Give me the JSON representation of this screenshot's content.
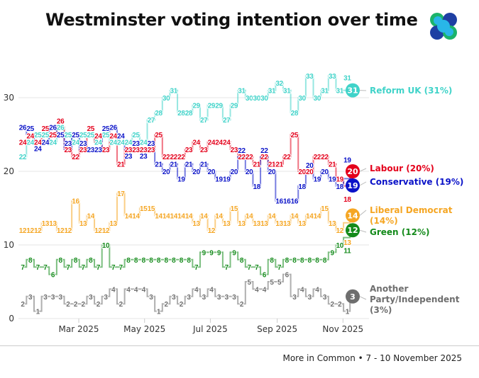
{
  "title": "Westminster voting intention over time",
  "logo": {
    "icon": "more-in-common-logo",
    "colors": [
      "#1bb36b",
      "#1e3fa3",
      "#29b6e8"
    ]
  },
  "source": "More in Common • 7 - 10 November 2025",
  "chart_data": {
    "type": "line",
    "title": "Westminster voting intention over time",
    "xlabel": "",
    "ylabel": "",
    "ylim": [
      0,
      35
    ],
    "yticks": [
      0,
      10,
      20,
      30
    ],
    "xticks": [
      {
        "date": "2025-03-01",
        "label": "Mar 2025"
      },
      {
        "date": "2025-05-01",
        "label": "May 2025"
      },
      {
        "date": "2025-07-01",
        "label": "Jul 2025"
      },
      {
        "date": "2025-09-01",
        "label": "Sep 2025"
      },
      {
        "date": "2025-11-01",
        "label": "Nov 2025"
      }
    ],
    "grid": "horizontal",
    "x": [
      "2025-01-08",
      "2025-01-15",
      "2025-01-22",
      "2025-01-29",
      "2025-02-05",
      "2025-02-12",
      "2025-02-19",
      "2025-02-26",
      "2025-03-05",
      "2025-03-12",
      "2025-03-19",
      "2025-03-26",
      "2025-04-02",
      "2025-04-09",
      "2025-04-16",
      "2025-04-23",
      "2025-04-30",
      "2025-05-07",
      "2025-05-14",
      "2025-05-21",
      "2025-05-28",
      "2025-06-04",
      "2025-06-11",
      "2025-06-18",
      "2025-06-25",
      "2025-07-02",
      "2025-07-09",
      "2025-07-16",
      "2025-07-23",
      "2025-07-30",
      "2025-08-06",
      "2025-08-13",
      "2025-08-20",
      "2025-08-27",
      "2025-09-03",
      "2025-09-10",
      "2025-09-17",
      "2025-09-24",
      "2025-10-01",
      "2025-10-08",
      "2025-10-15",
      "2025-10-22",
      "2025-10-29",
      "2025-11-05",
      "2025-11-10"
    ],
    "series": [
      {
        "name": "Reform UK",
        "end_label": "Reform UK (31%)",
        "color": "#40d3c9",
        "values": [
          22,
          24,
          25,
          25,
          24,
          26,
          25,
          24,
          25,
          25,
          24,
          25,
          24,
          24,
          24,
          25,
          24,
          27,
          28,
          30,
          31,
          28,
          28,
          29,
          27,
          29,
          29,
          27,
          29,
          31,
          30,
          30,
          30,
          31,
          32,
          31,
          28,
          30,
          33,
          30,
          31,
          33,
          31,
          31,
          31
        ]
      },
      {
        "name": "Labour",
        "end_label": "Labour (20%)",
        "color": "#e4001b",
        "values": [
          24,
          24,
          24,
          25,
          25,
          26,
          23,
          22,
          23,
          25,
          24,
          23,
          24,
          21,
          23,
          23,
          23,
          23,
          25,
          22,
          22,
          22,
          23,
          24,
          23,
          24,
          24,
          24,
          23,
          22,
          22,
          21,
          22,
          21,
          21,
          22,
          25,
          20,
          20,
          22,
          22,
          21,
          19,
          18,
          20
        ]
      },
      {
        "name": "Conservative",
        "end_label": "Conservative (19%)",
        "color": "#0a12c8",
        "values": [
          26,
          25,
          24,
          24,
          26,
          25,
          23,
          25,
          23,
          23,
          23,
          25,
          26,
          24,
          23,
          23,
          23,
          23,
          21,
          20,
          21,
          19,
          21,
          20,
          21,
          20,
          19,
          19,
          20,
          22,
          20,
          18,
          22,
          20,
          16,
          16,
          16,
          18,
          20,
          19,
          20,
          19,
          18,
          19,
          19
        ]
      },
      {
        "name": "Liberal Democrat",
        "end_label": "Liberal Democrat (14%)",
        "color": "#f5a623",
        "values": [
          12,
          12,
          12,
          13,
          13,
          12,
          12,
          16,
          13,
          14,
          12,
          12,
          13,
          17,
          14,
          14,
          15,
          15,
          14,
          14,
          14,
          14,
          14,
          13,
          14,
          12,
          14,
          13,
          15,
          13,
          14,
          13,
          13,
          14,
          13,
          13,
          14,
          13,
          14,
          14,
          15,
          13,
          12,
          13,
          14
        ]
      },
      {
        "name": "Green",
        "end_label": "Green (12%)",
        "color": "#138a1a",
        "values": [
          7,
          8,
          7,
          7,
          6,
          8,
          7,
          8,
          7,
          8,
          7,
          10,
          7,
          7,
          8,
          8,
          8,
          8,
          8,
          8,
          8,
          8,
          8,
          7,
          9,
          9,
          9,
          7,
          9,
          8,
          7,
          7,
          6,
          8,
          7,
          8,
          8,
          8,
          8,
          8,
          8,
          9,
          10,
          11,
          12
        ]
      },
      {
        "name": "Another Party/Independent",
        "end_label": "Another Party/Independent (3%)",
        "color": "#6e6e6e",
        "values": [
          2,
          3,
          1,
          3,
          3,
          3,
          2,
          2,
          2,
          3,
          2,
          3,
          4,
          2,
          4,
          4,
          4,
          3,
          1,
          2,
          3,
          2,
          3,
          4,
          3,
          4,
          3,
          3,
          3,
          2,
          5,
          4,
          4,
          5,
          5,
          6,
          3,
          4,
          3,
          4,
          3,
          2,
          2,
          1,
          3
        ]
      }
    ]
  }
}
